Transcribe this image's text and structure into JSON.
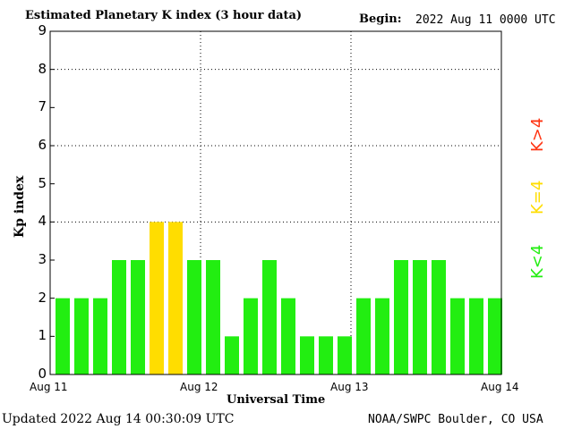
{
  "header": {
    "title": "Estimated Planetary K index (3 hour data)",
    "begin_label": "Begin:",
    "begin_value": "2022 Aug 11 0000 UTC"
  },
  "footer": {
    "updated": "Updated 2022 Aug 14 00:30:09 UTC",
    "source": "NOAA/SWPC Boulder, CO USA"
  },
  "legend": {
    "gt4": "K>4",
    "eq4": "K=4",
    "lt4": "K<4"
  },
  "colors": {
    "lt4": "#22ee11",
    "eq4": "#ffdd00",
    "gt4": "#ff3311"
  },
  "chart_data": {
    "type": "bar",
    "title": "Estimated Planetary K index (3 hour data)",
    "xlabel": "Universal Time",
    "ylabel": "Kp index",
    "ylim": [
      0,
      9
    ],
    "yticks": [
      "0",
      "1",
      "2",
      "3",
      "4",
      "5",
      "6",
      "7",
      "8",
      "9"
    ],
    "xticks": [
      "Aug 11",
      "Aug 12",
      "Aug 13",
      "Aug 14"
    ],
    "gridlines_y": [
      4,
      6,
      8
    ],
    "interval_hours": 3,
    "values": [
      2,
      2,
      2,
      3,
      3,
      4,
      4,
      3,
      3,
      1,
      2,
      3,
      2,
      1,
      1,
      1,
      2,
      2,
      3,
      3,
      3,
      2,
      2,
      2
    ]
  }
}
